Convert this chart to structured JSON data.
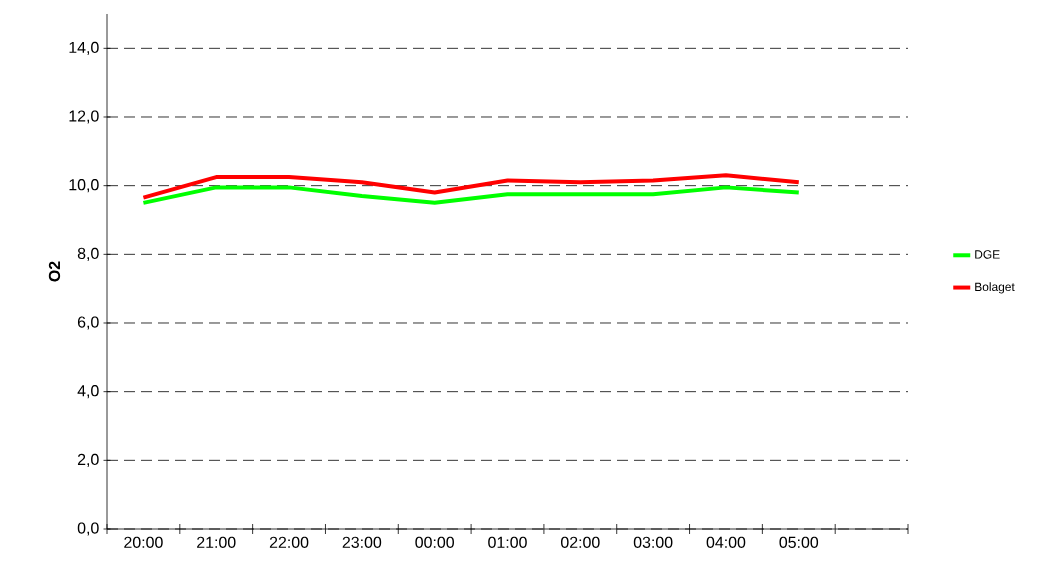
{
  "chart_data": {
    "type": "line",
    "ylabel": "O2",
    "categories": [
      "20:00",
      "21:00",
      "22:00",
      "23:00",
      "00:00",
      "01:00",
      "02:00",
      "03:00",
      "04:00",
      "05:00",
      null
    ],
    "series": [
      {
        "name": "DGE",
        "color": "#00ff00",
        "values": [
          9.5,
          9.95,
          9.95,
          9.7,
          9.5,
          9.75,
          9.75,
          9.75,
          9.95,
          9.8,
          null
        ]
      },
      {
        "name": "Bolaget",
        "color": "#ff0000",
        "values": [
          9.65,
          10.25,
          10.25,
          10.1,
          9.8,
          10.15,
          10.1,
          10.15,
          10.3,
          10.1,
          null
        ]
      }
    ],
    "ylim": [
      0,
      15
    ],
    "yticks": [
      {
        "value": 0,
        "label": "0,0"
      },
      {
        "value": 2,
        "label": "2,0"
      },
      {
        "value": 4,
        "label": "4,0"
      },
      {
        "value": 6,
        "label": "6,0"
      },
      {
        "value": 8,
        "label": "8,0"
      },
      {
        "value": 10,
        "label": "10,0"
      },
      {
        "value": 12,
        "label": "12,0"
      },
      {
        "value": 14,
        "label": "14,0"
      }
    ],
    "grid": "y",
    "line_style": "solid",
    "marker": "none",
    "legend": "right"
  }
}
